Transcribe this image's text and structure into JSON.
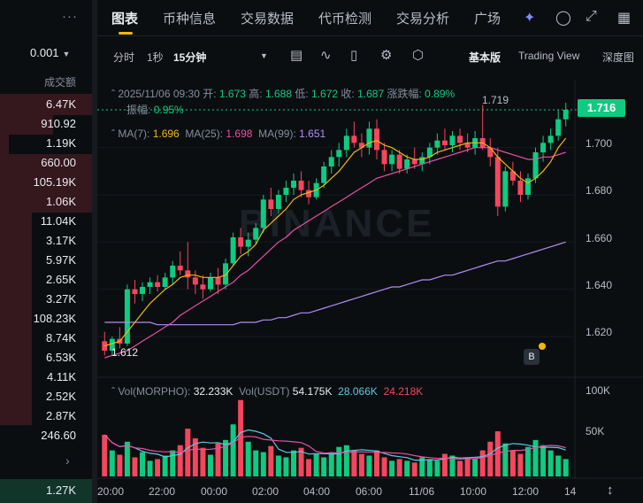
{
  "left_panel": {
    "precision": "0.001",
    "header": "成交额",
    "rows": [
      "6.47K",
      "910.92",
      "1.19K",
      "660.00",
      "105.19K",
      "1.06K",
      "11.04K",
      "3.17K",
      "5.97K",
      "2.65K",
      "3.27K",
      "108.23K",
      "8.74K",
      "6.53K",
      "4.11K",
      "2.52K",
      "2.87K",
      "246.60"
    ],
    "last": "1.27K"
  },
  "tabs": [
    "图表",
    "币种信息",
    "交易数据",
    "代币检测",
    "交易分析",
    "广场"
  ],
  "icons": [
    "ai-icon",
    "bell-icon",
    "expand-icon",
    "grid-icon"
  ],
  "toolbar": {
    "intervals": [
      "分时",
      "1秒",
      "15分钟"
    ],
    "views": [
      "基本版",
      "Trading View",
      "深度图"
    ]
  },
  "legend": {
    "date": "2025/11/06 09:30",
    "open_label": "开:",
    "open": "1.673",
    "high_label": "高:",
    "high": "1.688",
    "low_label": "低:",
    "low": "1.672",
    "close_label": "收:",
    "close": "1.687",
    "change_label": "涨跌幅:",
    "change": "0.89%",
    "amp_label": "振幅:",
    "amp": "0.95%",
    "ma7_label": "MA(7):",
    "ma7": "1.696",
    "ma25_label": "MA(25):",
    "ma25": "1.698",
    "ma99_label": "MA(99):",
    "ma99": "1.651",
    "vol_label": "Vol(MORPHO):",
    "vol": "32.233K",
    "volu_label": "Vol(USDT)",
    "volu": "54.175K",
    "volu_ma1": "28.066K",
    "volu_ma2": "24.218K"
  },
  "current_price": "1.716",
  "high_marker": "1.719",
  "low_marker": "1.612",
  "watermark": "BINANCE",
  "price_axis": [
    "1.700",
    "1.680",
    "1.660",
    "1.640",
    "1.620"
  ],
  "volume_axis": [
    "100K",
    "50K"
  ],
  "time_axis": [
    "20:00",
    "22:00",
    "00:00",
    "02:00",
    "04:00",
    "06:00",
    "11/06",
    "10:00",
    "12:00",
    "14"
  ],
  "colors": {
    "up": "#0ecb81",
    "down": "#f6465d",
    "ma7": "#f0b90b",
    "ma25": "#e84fa3",
    "ma99": "#b38cf5",
    "accent": "#f0b90b"
  },
  "chart_data": {
    "type": "candlestick",
    "title": "",
    "ylim": [
      1.605,
      1.728
    ],
    "candles": [
      [
        1.618,
        1.622,
        1.612,
        1.614
      ],
      [
        1.614,
        1.62,
        1.612,
        1.619
      ],
      [
        1.619,
        1.624,
        1.615,
        1.617
      ],
      [
        1.617,
        1.642,
        1.616,
        1.64
      ],
      [
        1.64,
        1.644,
        1.634,
        1.638
      ],
      [
        1.638,
        1.643,
        1.635,
        1.641
      ],
      [
        1.641,
        1.645,
        1.638,
        1.643
      ],
      [
        1.643,
        1.646,
        1.639,
        1.641
      ],
      [
        1.641,
        1.647,
        1.64,
        1.645
      ],
      [
        1.645,
        1.652,
        1.642,
        1.65
      ],
      [
        1.65,
        1.656,
        1.646,
        1.648
      ],
      [
        1.648,
        1.66,
        1.64,
        1.645
      ],
      [
        1.645,
        1.648,
        1.638,
        1.642
      ],
      [
        1.642,
        1.646,
        1.636,
        1.64
      ],
      [
        1.64,
        1.647,
        1.639,
        1.645
      ],
      [
        1.645,
        1.649,
        1.638,
        1.642
      ],
      [
        1.642,
        1.653,
        1.64,
        1.651
      ],
      [
        1.651,
        1.664,
        1.65,
        1.662
      ],
      [
        1.662,
        1.666,
        1.655,
        1.658
      ],
      [
        1.658,
        1.664,
        1.654,
        1.661
      ],
      [
        1.661,
        1.668,
        1.659,
        1.666
      ],
      [
        1.666,
        1.68,
        1.664,
        1.678
      ],
      [
        1.678,
        1.683,
        1.671,
        1.674
      ],
      [
        1.674,
        1.682,
        1.672,
        1.68
      ],
      [
        1.68,
        1.686,
        1.677,
        1.683
      ],
      [
        1.683,
        1.689,
        1.68,
        1.686
      ],
      [
        1.686,
        1.69,
        1.679,
        1.682
      ],
      [
        1.682,
        1.686,
        1.676,
        1.679
      ],
      [
        1.679,
        1.687,
        1.678,
        1.685
      ],
      [
        1.685,
        1.694,
        1.683,
        1.692
      ],
      [
        1.692,
        1.699,
        1.689,
        1.696
      ],
      [
        1.696,
        1.702,
        1.692,
        1.699
      ],
      [
        1.699,
        1.708,
        1.696,
        1.705
      ],
      [
        1.705,
        1.711,
        1.7,
        1.702
      ],
      [
        1.702,
        1.706,
        1.696,
        1.7
      ],
      [
        1.7,
        1.711,
        1.697,
        1.708
      ],
      [
        1.708,
        1.712,
        1.695,
        1.699
      ],
      [
        1.699,
        1.702,
        1.69,
        1.693
      ],
      [
        1.693,
        1.699,
        1.69,
        1.697
      ],
      [
        1.697,
        1.699,
        1.689,
        1.691
      ],
      [
        1.691,
        1.697,
        1.689,
        1.695
      ],
      [
        1.695,
        1.7,
        1.691,
        1.693
      ],
      [
        1.693,
        1.698,
        1.69,
        1.696
      ],
      [
        1.696,
        1.702,
        1.693,
        1.7
      ],
      [
        1.7,
        1.706,
        1.697,
        1.703
      ],
      [
        1.703,
        1.708,
        1.699,
        1.701
      ],
      [
        1.701,
        1.707,
        1.698,
        1.705
      ],
      [
        1.705,
        1.708,
        1.699,
        1.702
      ],
      [
        1.702,
        1.706,
        1.698,
        1.7
      ],
      [
        1.7,
        1.707,
        1.697,
        1.704
      ],
      [
        1.704,
        1.718,
        1.699,
        1.7
      ],
      [
        1.7,
        1.704,
        1.692,
        1.696
      ],
      [
        1.696,
        1.7,
        1.671,
        1.675
      ],
      [
        1.675,
        1.692,
        1.673,
        1.69
      ],
      [
        1.69,
        1.694,
        1.684,
        1.686
      ],
      [
        1.686,
        1.69,
        1.677,
        1.68
      ],
      [
        1.68,
        1.689,
        1.678,
        1.687
      ],
      [
        1.687,
        1.7,
        1.685,
        1.698
      ],
      [
        1.698,
        1.705,
        1.694,
        1.702
      ],
      [
        1.702,
        1.708,
        1.699,
        1.705
      ],
      [
        1.705,
        1.716,
        1.703,
        1.712
      ],
      [
        1.712,
        1.719,
        1.709,
        1.716
      ]
    ],
    "volume": [
      48,
      30,
      25,
      40,
      22,
      28,
      18,
      20,
      24,
      30,
      36,
      55,
      44,
      33,
      25,
      38,
      42,
      60,
      88,
      40,
      30,
      28,
      35,
      24,
      22,
      30,
      33,
      20,
      26,
      22,
      28,
      34,
      36,
      30,
      26,
      24,
      30,
      22,
      18,
      20,
      18,
      16,
      22,
      20,
      18,
      26,
      24,
      18,
      22,
      20,
      30,
      40,
      52,
      38,
      30,
      26,
      34,
      42,
      36,
      30,
      24,
      20
    ],
    "ma7": [
      1.616,
      1.617,
      1.618,
      1.622,
      1.626,
      1.63,
      1.634,
      1.637,
      1.64,
      1.642,
      1.645,
      1.646,
      1.646,
      1.645,
      1.645,
      1.645,
      1.646,
      1.65,
      1.654,
      1.656,
      1.659,
      1.665,
      1.668,
      1.671,
      1.674,
      1.678,
      1.68,
      1.681,
      1.682,
      1.684,
      1.687,
      1.69,
      1.694,
      1.698,
      1.7,
      1.702,
      1.703,
      1.701,
      1.7,
      1.698,
      1.696,
      1.695,
      1.695,
      1.696,
      1.698,
      1.699,
      1.7,
      1.701,
      1.702,
      1.702,
      1.702,
      1.7,
      1.696,
      1.693,
      1.69,
      1.687,
      1.685,
      1.687,
      1.69,
      1.694,
      1.7,
      1.704
    ],
    "ma25": [
      1.611,
      1.612,
      1.613,
      1.614,
      1.616,
      1.618,
      1.62,
      1.622,
      1.624,
      1.626,
      1.629,
      1.631,
      1.633,
      1.635,
      1.637,
      1.639,
      1.641,
      1.643,
      1.646,
      1.648,
      1.651,
      1.654,
      1.657,
      1.66,
      1.662,
      1.665,
      1.667,
      1.669,
      1.671,
      1.673,
      1.675,
      1.677,
      1.679,
      1.681,
      1.683,
      1.685,
      1.687,
      1.688,
      1.689,
      1.69,
      1.691,
      1.692,
      1.693,
      1.694,
      1.695,
      1.696,
      1.697,
      1.698,
      1.699,
      1.7,
      1.7,
      1.7,
      1.699,
      1.698,
      1.697,
      1.696,
      1.695,
      1.695,
      1.696,
      1.696,
      1.697,
      1.698
    ],
    "ma99": [
      1.626,
      1.626,
      1.626,
      1.626,
      1.626,
      1.626,
      1.626,
      1.625,
      1.625,
      1.625,
      1.625,
      1.625,
      1.625,
      1.625,
      1.625,
      1.625,
      1.625,
      1.625,
      1.626,
      1.626,
      1.626,
      1.627,
      1.627,
      1.628,
      1.628,
      1.629,
      1.63,
      1.63,
      1.631,
      1.632,
      1.633,
      1.634,
      1.635,
      1.636,
      1.637,
      1.638,
      1.639,
      1.64,
      1.641,
      1.641,
      1.642,
      1.643,
      1.644,
      1.644,
      1.645,
      1.646,
      1.646,
      1.647,
      1.648,
      1.649,
      1.65,
      1.651,
      1.652,
      1.652,
      1.653,
      1.654,
      1.655,
      1.656,
      1.657,
      1.658,
      1.659,
      1.66
    ]
  }
}
